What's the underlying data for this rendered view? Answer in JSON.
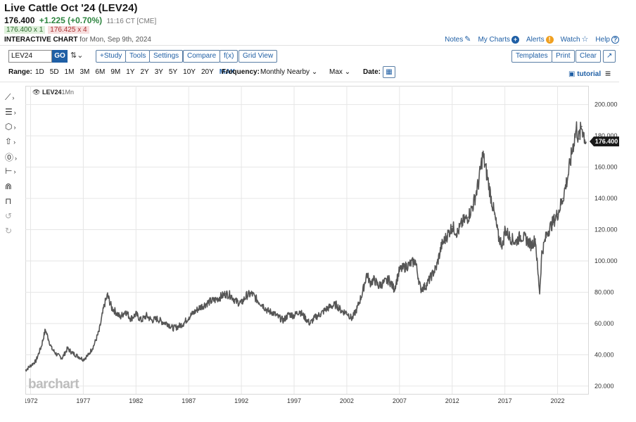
{
  "header": {
    "title": "Live Cattle Oct '24 (LEV24)",
    "last": "176.400",
    "change": "+1.225 (+0.70%)",
    "time": "11:16 CT [CME]",
    "bid": "176.400 x 1",
    "ask": "176.425 x 4",
    "interactive_label": "INTERACTIVE CHART",
    "date_text": "for Mon, Sep 9th, 2024"
  },
  "toplinks": {
    "notes": "Notes",
    "my_charts": "My Charts",
    "alerts": "Alerts",
    "watch": "Watch",
    "help": "Help"
  },
  "toolbar": {
    "symbol": "LEV24",
    "go": "GO",
    "study": "+Study",
    "tools": "Tools",
    "settings": "Settings",
    "compare": "Compare",
    "fx": "f(x)",
    "grid_view": "Grid View",
    "templates": "Templates",
    "print": "Print",
    "clear": "Clear"
  },
  "rangebar": {
    "range_label": "Range:",
    "ranges": [
      "1D",
      "5D",
      "1M",
      "3M",
      "6M",
      "9M",
      "1Y",
      "2Y",
      "3Y",
      "5Y",
      "10Y",
      "20Y",
      "MAX"
    ],
    "active_range": "MAX",
    "frequency_label": "Frequency:",
    "frequency_value": "Monthly Nearby",
    "max_value": "Max",
    "date_label": "Date:",
    "tutorial": "tutorial"
  },
  "icons": {
    "notes": "edit-icon",
    "my_charts": "plus-circle-icon",
    "alerts": "warning-icon",
    "watch": "star-icon",
    "help": "help-icon",
    "calendar": "calendar-icon",
    "expand": "expand-icon",
    "menu": "hamburger-icon"
  },
  "colors": {
    "accent": "#1f5fa5",
    "price_line": "#555555",
    "change_up": "#2e8540",
    "last_price_tag": "#1a1a1a"
  },
  "watermark": "barchart",
  "chart_data": {
    "type": "line",
    "title": "",
    "series_label": "LEV24",
    "series_interval": "1Mn",
    "xlabel": "",
    "ylabel": "",
    "x_ticks": [
      "1972",
      "1977",
      "1982",
      "1987",
      "1992",
      "1997",
      "2002",
      "2007",
      "2012",
      "2017",
      "2022"
    ],
    "y_ticks": [
      "20.000",
      "40.000",
      "60.000",
      "80.000",
      "100.000",
      "120.000",
      "140.000",
      "160.000",
      "180.000",
      "200.000"
    ],
    "ylim": [
      15,
      212
    ],
    "xlim": [
      1971.5,
      2024.9
    ],
    "last_value_label": "176.400",
    "last_value": 176.4,
    "grid": true,
    "axis_position": "right",
    "series": [
      {
        "x": [
          1971.5,
          1972.0,
          1972.5,
          1973.0,
          1973.4,
          1973.7,
          1974.0,
          1974.5,
          1975.0,
          1975.5,
          1976.0,
          1976.5,
          1977.0,
          1977.5,
          1978.0,
          1978.5,
          1979.0,
          1979.3,
          1979.7,
          1980.0,
          1980.5,
          1981.0,
          1981.5,
          1982.0,
          1982.5,
          1983.0,
          1983.5,
          1984.0,
          1984.5,
          1985.0,
          1985.5,
          1986.0,
          1986.5,
          1987.0,
          1987.5,
          1988.0,
          1988.5,
          1989.0,
          1989.5,
          1990.0,
          1990.5,
          1991.0,
          1991.5,
          1992.0,
          1992.5,
          1993.0,
          1993.5,
          1994.0,
          1994.5,
          1995.0,
          1995.5,
          1996.0,
          1996.5,
          1997.0,
          1997.5,
          1998.0,
          1998.5,
          1999.0,
          1999.5,
          2000.0,
          2000.5,
          2001.0,
          2001.5,
          2002.0,
          2002.5,
          2003.0,
          2003.5,
          2003.9,
          2004.2,
          2004.6,
          2005.0,
          2005.5,
          2006.0,
          2006.5,
          2007.0,
          2007.5,
          2008.0,
          2008.5,
          2009.0,
          2009.5,
          2010.0,
          2010.5,
          2011.0,
          2011.5,
          2012.0,
          2012.5,
          2013.0,
          2013.5,
          2014.0,
          2014.5,
          2014.9,
          2015.3,
          2015.7,
          2016.0,
          2016.4,
          2016.8,
          2017.0,
          2017.5,
          2018.0,
          2018.5,
          2019.0,
          2019.5,
          2019.9,
          2020.1,
          2020.3,
          2020.5,
          2021.0,
          2021.5,
          2022.0,
          2022.5,
          2023.0,
          2023.5,
          2023.8,
          2024.0,
          2024.3,
          2024.7
        ],
        "values": [
          30,
          33,
          36,
          45,
          56,
          50,
          44,
          40,
          38,
          44,
          41,
          39,
          37,
          40,
          46,
          55,
          72,
          78,
          70,
          68,
          64,
          68,
          63,
          66,
          62,
          65,
          62,
          63,
          61,
          60,
          57,
          58,
          60,
          64,
          67,
          70,
          72,
          74,
          75,
          77,
          79,
          78,
          74,
          73,
          78,
          79,
          75,
          72,
          68,
          67,
          64,
          62,
          66,
          65,
          68,
          64,
          60,
          64,
          66,
          69,
          71,
          72,
          68,
          67,
          63,
          70,
          80,
          92,
          86,
          88,
          84,
          86,
          88,
          82,
          94,
          96,
          98,
          100,
          82,
          84,
          90,
          96,
          110,
          116,
          122,
          118,
          125,
          128,
          136,
          150,
          168,
          155,
          140,
          130,
          115,
          110,
          120,
          115,
          112,
          116,
          114,
          110,
          114,
          95,
          80,
          105,
          118,
          124,
          130,
          140,
          155,
          175,
          185,
          178,
          186,
          176
        ]
      }
    ]
  }
}
